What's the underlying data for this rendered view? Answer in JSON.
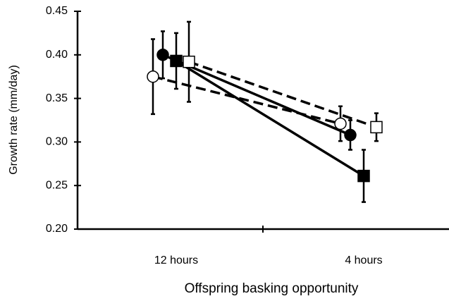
{
  "chart_data": {
    "type": "line",
    "x_label": "Offspring basking opportunity",
    "y_label": "Growth rate (mm/day)",
    "categories": [
      "12 hours",
      "4 hours"
    ],
    "series": [
      {
        "color": "#000000",
        "marker": "circle",
        "marker_fill": "#ffffff",
        "dashed": true,
        "values": [
          0.375,
          0.321
        ],
        "errors": [
          0.043,
          0.02
        ]
      },
      {
        "color": "#000000",
        "marker": "circle",
        "marker_fill": "#000000",
        "dashed": false,
        "values": [
          0.4,
          0.308
        ],
        "errors": [
          0.027,
          0.017
        ]
      },
      {
        "color": "#000000",
        "marker": "square",
        "marker_fill": "#000000",
        "dashed": false,
        "values": [
          0.393,
          0.261
        ],
        "errors": [
          0.032,
          0.03
        ]
      },
      {
        "color": "#000000",
        "marker": "square",
        "marker_fill": "#ffffff",
        "dashed": true,
        "values": [
          0.392,
          0.317
        ],
        "errors": [
          0.046,
          0.016
        ]
      }
    ],
    "ylim": [
      0.2,
      0.45
    ],
    "yticks": [
      {
        "value": 0.2,
        "label": "0.20"
      },
      0.25,
      {
        "value": 0.3,
        "label": "0.30"
      },
      0.35,
      {
        "value": 0.4,
        "label": "0.40"
      },
      0.45
    ],
    "grid": false
  }
}
